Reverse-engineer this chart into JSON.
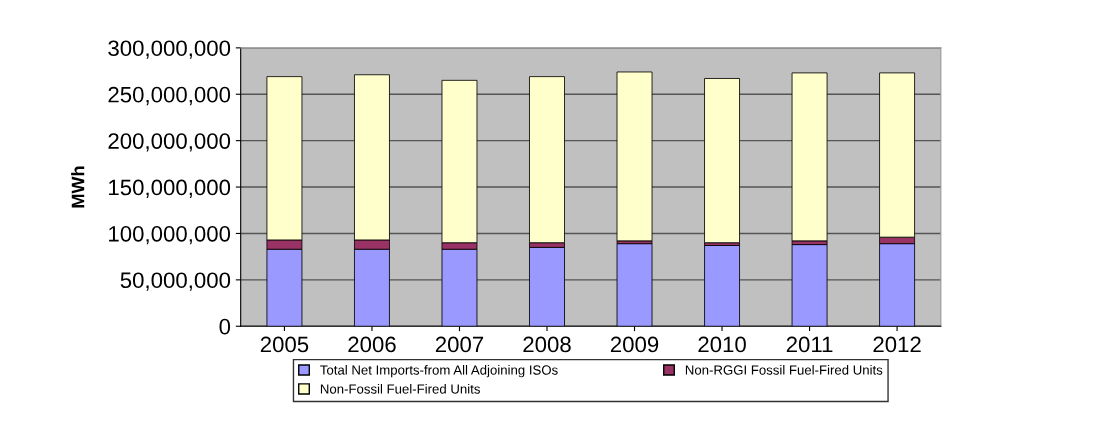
{
  "chart_data": {
    "type": "bar",
    "ylabel": "MWh",
    "stacked": true,
    "categories": [
      "2005",
      "2006",
      "2007",
      "2008",
      "2009",
      "2010",
      "2011",
      "2012"
    ],
    "series": [
      {
        "name": "Total Net Imports-from All Adjoining ISOs",
        "color": "#9999ff",
        "values": [
          83000000,
          83000000,
          83000000,
          85000000,
          89000000,
          87000000,
          88000000,
          89000000
        ]
      },
      {
        "name": "Non-RGGI Fossil Fuel-Fired Units",
        "color": "#993366",
        "values": [
          10000000,
          10000000,
          7000000,
          5000000,
          3000000,
          3000000,
          4000000,
          7000000
        ]
      },
      {
        "name": "Non-Fossil Fuel-Fired Units",
        "color": "#ffffcc",
        "values": [
          176000000,
          178000000,
          175000000,
          179000000,
          182000000,
          177000000,
          181000000,
          177000000
        ]
      }
    ],
    "ylim": [
      0,
      300000000
    ],
    "yticks": [
      {
        "value": 0,
        "label": "0"
      },
      {
        "value": 50000000,
        "label": "50,000,000"
      },
      {
        "value": 100000000,
        "label": "100,000,000"
      },
      {
        "value": 150000000,
        "label": "150,000,000"
      },
      {
        "value": 200000000,
        "label": "200,000,000"
      },
      {
        "value": 250000000,
        "label": "250,000,000"
      },
      {
        "value": 300000000,
        "label": "300,000,000"
      }
    ],
    "grid": "y",
    "legend": "bottom"
  }
}
